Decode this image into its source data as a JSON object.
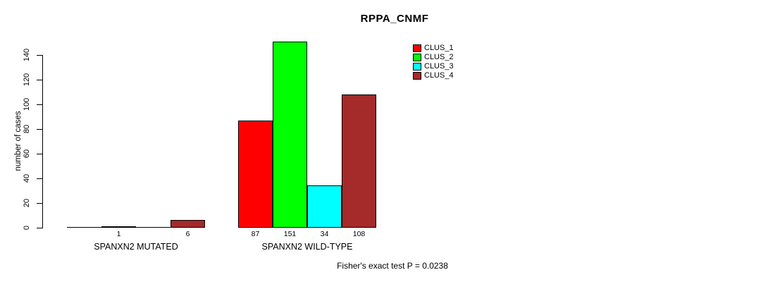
{
  "chart_data": {
    "type": "bar",
    "title": "RPPA_CNMF",
    "ylabel": "number of cases",
    "xlabel": "",
    "ylim": [
      0,
      140
    ],
    "yticks": [
      0,
      20,
      40,
      60,
      80,
      100,
      120,
      140
    ],
    "grid": false,
    "legend_position": "top-right",
    "legend": [
      {
        "name": "CLUS_1",
        "color": "#FF0000"
      },
      {
        "name": "CLUS_2",
        "color": "#00FF00"
      },
      {
        "name": "CLUS_3",
        "color": "#00FFFF"
      },
      {
        "name": "CLUS_4",
        "color": "#A52A2A"
      }
    ],
    "categories": [
      "SPANXN2 MUTATED",
      "SPANXN2 WILD-TYPE"
    ],
    "series": [
      {
        "name": "CLUS_1",
        "values": [
          0,
          87
        ]
      },
      {
        "name": "CLUS_2",
        "values": [
          1,
          151
        ]
      },
      {
        "name": "CLUS_3",
        "values": [
          0,
          34
        ]
      },
      {
        "name": "CLUS_4",
        "values": [
          6,
          108
        ]
      }
    ],
    "bar_value_labels": [
      [
        "",
        "1",
        "",
        "6"
      ],
      [
        "87",
        "151",
        "34",
        "108"
      ]
    ],
    "note": "Fisher's exact test P = 0.0238"
  }
}
